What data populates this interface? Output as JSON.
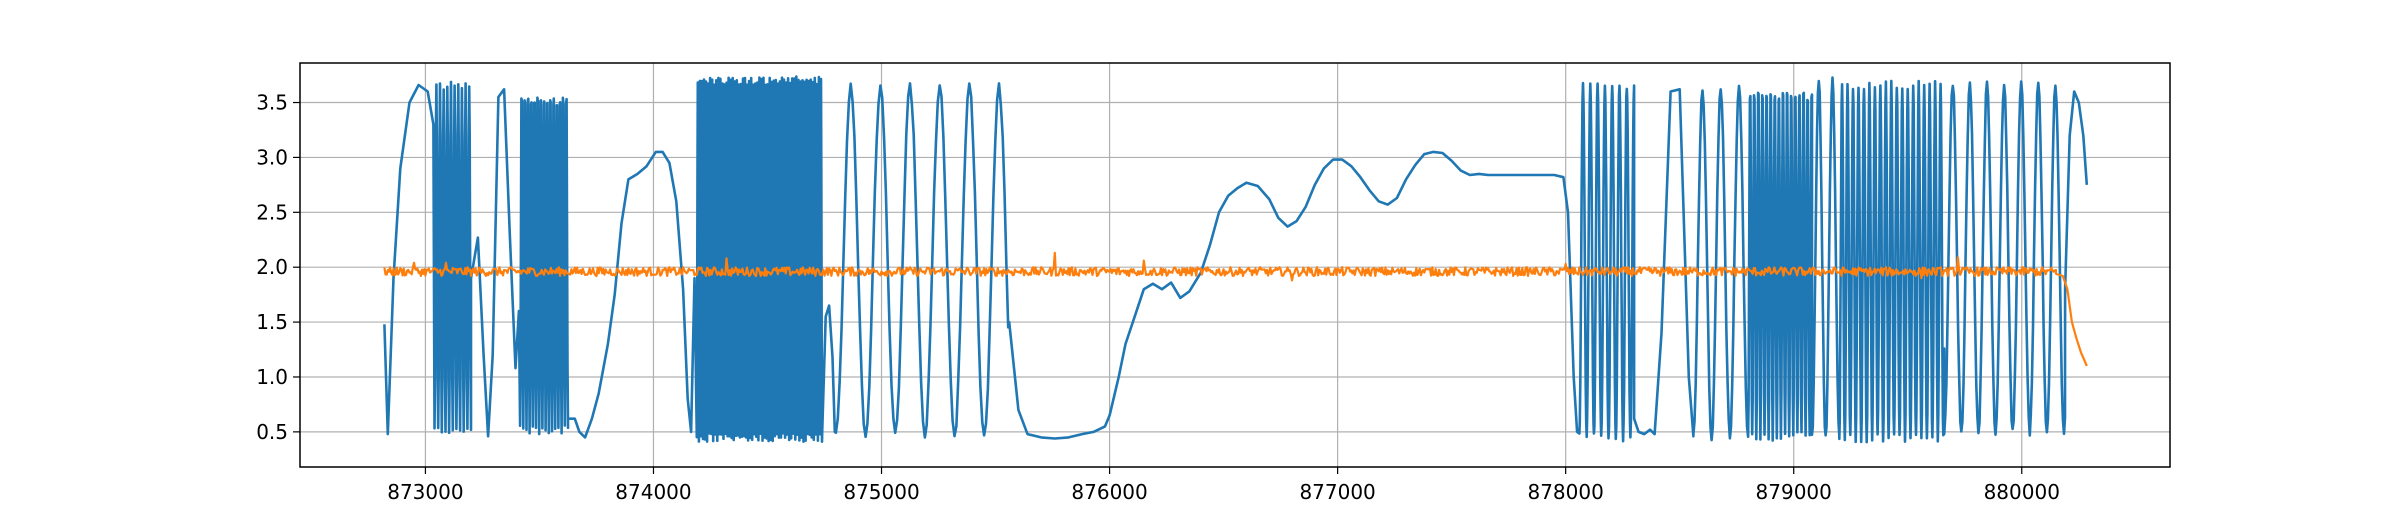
{
  "chart_data": {
    "type": "line",
    "title": "",
    "xlabel": "",
    "ylabel": "",
    "xlim": [
      872450,
      880650
    ],
    "ylim": [
      0.18,
      3.86
    ],
    "x_ticks": [
      873000,
      874000,
      875000,
      876000,
      877000,
      878000,
      879000,
      880000
    ],
    "x_tick_labels": [
      "873000",
      "874000",
      "875000",
      "876000",
      "877000",
      "878000",
      "879000",
      "880000"
    ],
    "y_ticks": [
      0.5,
      1.0,
      1.5,
      2.0,
      2.5,
      3.0,
      3.5
    ],
    "y_tick_labels": [
      "0.5",
      "1.0",
      "1.5",
      "2.0",
      "2.5",
      "3.0",
      "3.5"
    ],
    "grid": true,
    "legend": "none",
    "series": [
      {
        "color": "#1f77b4",
        "segments": [
          {
            "type": "points",
            "points": [
              [
                872820,
                1.48
              ],
              [
                872835,
                0.48
              ],
              [
                872860,
                1.9
              ],
              [
                872890,
                2.9
              ],
              [
                872930,
                3.5
              ],
              [
                872970,
                3.66
              ],
              [
                873010,
                3.6
              ],
              [
                873035,
                3.3
              ]
            ]
          },
          {
            "type": "osc",
            "x0": 873040,
            "x1": 873200,
            "period": 16,
            "low": 0.52,
            "high": 3.65
          },
          {
            "type": "points",
            "points": [
              [
                873200,
                1.9
              ],
              [
                873230,
                2.27
              ],
              [
                873255,
                1.2
              ],
              [
                873275,
                0.46
              ],
              [
                873295,
                1.2
              ],
              [
                873320,
                3.55
              ],
              [
                873345,
                3.62
              ],
              [
                873370,
                2.3
              ],
              [
                873395,
                1.08
              ],
              [
                873410,
                1.6
              ]
            ]
          },
          {
            "type": "osc",
            "x0": 873415,
            "x1": 873625,
            "period": 14,
            "low": 0.52,
            "high": 3.66
          },
          {
            "type": "points",
            "points": [
              [
                873625,
                0.62
              ],
              [
                873655,
                0.62
              ],
              [
                873675,
                0.5
              ],
              [
                873700,
                0.45
              ],
              [
                873730,
                0.62
              ],
              [
                873760,
                0.85
              ],
              [
                873800,
                1.3
              ],
              [
                873830,
                1.75
              ],
              [
                873860,
                2.4
              ],
              [
                873890,
                2.8
              ],
              [
                873930,
                2.85
              ],
              [
                873970,
                2.92
              ],
              [
                874010,
                3.05
              ],
              [
                874040,
                3.05
              ],
              [
                874070,
                2.95
              ],
              [
                874100,
                2.6
              ],
              [
                874130,
                1.8
              ],
              [
                874150,
                0.8
              ],
              [
                874165,
                0.5
              ],
              [
                874180,
                1.9
              ]
            ]
          },
          {
            "type": "osc",
            "x0": 874190,
            "x1": 874740,
            "period": 9,
            "low": 0.45,
            "high": 3.7
          },
          {
            "type": "points",
            "points": [
              [
                874740,
                0.5
              ],
              [
                874755,
                1.55
              ],
              [
                874770,
                1.65
              ],
              [
                874785,
                1.18
              ],
              [
                874795,
                0.5
              ]
            ]
          },
          {
            "type": "osc",
            "x0": 874800,
            "x1": 875560,
            "period": 130,
            "low": 0.46,
            "high": 3.64
          },
          {
            "type": "points",
            "points": [
              [
                875560,
                1.5
              ],
              [
                875600,
                0.7
              ],
              [
                875640,
                0.48
              ],
              [
                875700,
                0.45
              ],
              [
                875760,
                0.44
              ],
              [
                875820,
                0.45
              ],
              [
                875880,
                0.48
              ],
              [
                875930,
                0.5
              ],
              [
                875980,
                0.55
              ],
              [
                876000,
                0.65
              ],
              [
                876040,
                1.0
              ],
              [
                876070,
                1.3
              ],
              [
                876110,
                1.55
              ],
              [
                876150,
                1.8
              ],
              [
                876190,
                1.85
              ],
              [
                876230,
                1.8
              ],
              [
                876270,
                1.86
              ],
              [
                876310,
                1.72
              ],
              [
                876350,
                1.78
              ],
              [
                876400,
                1.95
              ],
              [
                876440,
                2.2
              ],
              [
                876480,
                2.5
              ],
              [
                876520,
                2.65
              ],
              [
                876560,
                2.72
              ],
              [
                876600,
                2.77
              ],
              [
                876650,
                2.74
              ],
              [
                876700,
                2.62
              ],
              [
                876740,
                2.45
              ],
              [
                876780,
                2.37
              ],
              [
                876820,
                2.42
              ],
              [
                876860,
                2.55
              ],
              [
                876900,
                2.75
              ],
              [
                876940,
                2.9
              ],
              [
                876980,
                2.98
              ],
              [
                877020,
                2.98
              ],
              [
                877060,
                2.92
              ],
              [
                877100,
                2.82
              ],
              [
                877140,
                2.7
              ],
              [
                877180,
                2.6
              ],
              [
                877220,
                2.57
              ],
              [
                877260,
                2.63
              ],
              [
                877300,
                2.8
              ],
              [
                877340,
                2.93
              ],
              [
                877380,
                3.03
              ],
              [
                877420,
                3.05
              ],
              [
                877460,
                3.04
              ],
              [
                877500,
                2.97
              ],
              [
                877540,
                2.88
              ],
              [
                877580,
                2.84
              ],
              [
                877620,
                2.85
              ],
              [
                877660,
                2.84
              ],
              [
                877700,
                2.84
              ],
              [
                877750,
                2.84
              ],
              [
                877800,
                2.84
              ],
              [
                877850,
                2.84
              ],
              [
                877900,
                2.84
              ],
              [
                877950,
                2.84
              ],
              [
                877990,
                2.82
              ],
              [
                878010,
                2.5
              ],
              [
                878035,
                1.0
              ],
              [
                878050,
                0.5
              ]
            ]
          },
          {
            "type": "osc",
            "x0": 878060,
            "x1": 878300,
            "period": 32,
            "low": 0.45,
            "high": 3.65
          },
          {
            "type": "points",
            "points": [
              [
                878300,
                0.62
              ],
              [
                878320,
                0.5
              ],
              [
                878345,
                0.48
              ],
              [
                878370,
                0.52
              ],
              [
                878390,
                0.48
              ],
              [
                878420,
                1.4
              ],
              [
                878460,
                3.6
              ],
              [
                878500,
                3.62
              ],
              [
                878540,
                1.0
              ],
              [
                878560,
                0.46
              ]
            ]
          },
          {
            "type": "osc",
            "x0": 878560,
            "x1": 878800,
            "period": 80,
            "low": 0.46,
            "high": 3.64
          },
          {
            "type": "osc",
            "x0": 878800,
            "x1": 879080,
            "period": 18,
            "low": 0.46,
            "high": 3.65
          },
          {
            "type": "osc",
            "x0": 879080,
            "x1": 879200,
            "period": 60,
            "low": 0.46,
            "high": 3.7
          },
          {
            "type": "osc",
            "x0": 879200,
            "x1": 879660,
            "period": 24,
            "low": 0.44,
            "high": 3.66
          },
          {
            "type": "osc",
            "x0": 879660,
            "x1": 880190,
            "period": 75,
            "low": 0.5,
            "high": 3.66
          },
          {
            "type": "points",
            "points": [
              [
                880190,
                1.8
              ],
              [
                880210,
                3.2
              ],
              [
                880230,
                3.6
              ],
              [
                880250,
                3.5
              ],
              [
                880270,
                3.2
              ],
              [
                880285,
                2.75
              ]
            ]
          }
        ]
      },
      {
        "color": "#ff7f0e",
        "segments": [
          {
            "type": "noise",
            "x0": 872820,
            "x1": 880150,
            "step": 5,
            "base": 1.96,
            "amp": 0.04,
            "spikes": [
              [
                873090,
                2.04
              ],
              [
                874320,
                2.08
              ],
              [
                875760,
                2.13
              ],
              [
                876150,
                2.06
              ],
              [
                876800,
                1.88
              ],
              [
                878000,
                2.03
              ],
              [
                879720,
                2.09
              ],
              [
                879560,
                1.9
              ],
              [
                872950,
                2.04
              ]
            ]
          },
          {
            "type": "points",
            "points": [
              [
                880150,
                1.94
              ],
              [
                880180,
                1.92
              ],
              [
                880200,
                1.8
              ],
              [
                880220,
                1.5
              ],
              [
                880240,
                1.35
              ],
              [
                880260,
                1.22
              ],
              [
                880275,
                1.15
              ],
              [
                880285,
                1.1
              ]
            ]
          }
        ]
      }
    ]
  }
}
